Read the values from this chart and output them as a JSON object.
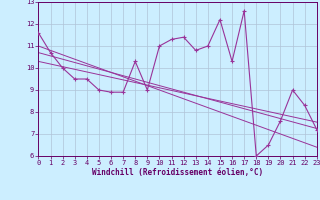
{
  "xlabel": "Windchill (Refroidissement éolien,°C)",
  "background_color": "#cceeff",
  "grid_color": "#b0c4d8",
  "line_color": "#993399",
  "x_data": [
    0,
    1,
    2,
    3,
    4,
    5,
    6,
    7,
    8,
    9,
    10,
    11,
    12,
    13,
    14,
    15,
    16,
    17,
    18,
    19,
    20,
    21,
    22,
    23
  ],
  "y_main": [
    11.6,
    10.7,
    10.0,
    9.5,
    9.5,
    9.0,
    8.9,
    8.9,
    10.3,
    9.0,
    11.0,
    11.3,
    11.4,
    10.8,
    11.0,
    12.2,
    10.3,
    12.6,
    6.0,
    6.5,
    7.6,
    9.0,
    8.3,
    7.2
  ],
  "y_reg1": [
    11.0,
    10.8,
    10.6,
    10.4,
    10.2,
    10.0,
    9.8,
    9.6,
    9.4,
    9.2,
    9.0,
    8.8,
    8.6,
    8.4,
    8.2,
    8.0,
    7.8,
    7.6,
    7.4,
    7.2,
    7.0,
    6.8,
    6.6,
    6.4
  ],
  "y_reg2": [
    10.7,
    10.55,
    10.4,
    10.25,
    10.1,
    9.95,
    9.8,
    9.65,
    9.5,
    9.35,
    9.2,
    9.05,
    8.9,
    8.75,
    8.6,
    8.45,
    8.3,
    8.15,
    8.0,
    7.85,
    7.7,
    7.55,
    7.4,
    7.25
  ],
  "y_reg3": [
    10.3,
    10.18,
    10.06,
    9.94,
    9.82,
    9.7,
    9.58,
    9.46,
    9.34,
    9.22,
    9.1,
    8.98,
    8.86,
    8.74,
    8.62,
    8.5,
    8.38,
    8.26,
    8.14,
    8.02,
    7.9,
    7.78,
    7.66,
    7.54
  ],
  "ylim": [
    6,
    13
  ],
  "xlim": [
    0,
    23
  ],
  "yticks": [
    6,
    7,
    8,
    9,
    10,
    11,
    12,
    13
  ],
  "xticks": [
    0,
    1,
    2,
    3,
    4,
    5,
    6,
    7,
    8,
    9,
    10,
    11,
    12,
    13,
    14,
    15,
    16,
    17,
    18,
    19,
    20,
    21,
    22,
    23
  ],
  "tick_fontsize": 5.0,
  "xlabel_fontsize": 5.5,
  "figsize": [
    3.2,
    2.0
  ],
  "dpi": 100
}
